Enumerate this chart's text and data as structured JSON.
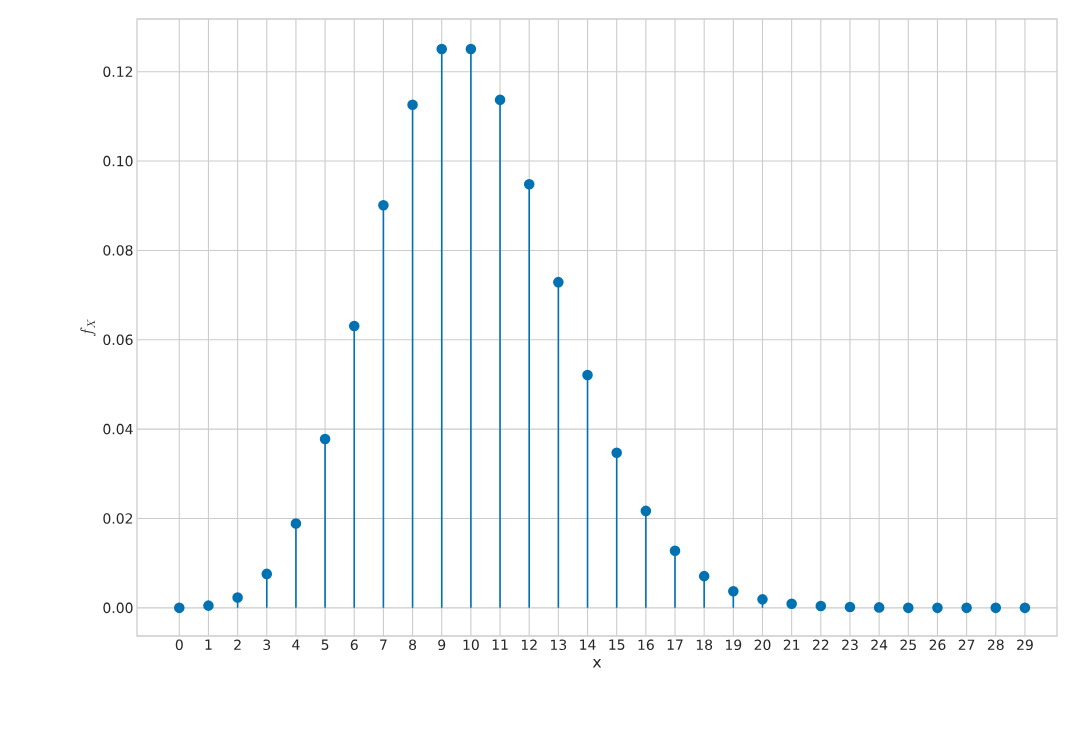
{
  "chart_data": {
    "type": "lollipop",
    "xlabel": "x",
    "ylabel": "f_X",
    "x": [
      0,
      1,
      2,
      3,
      4,
      5,
      6,
      7,
      8,
      9,
      10,
      11,
      12,
      13,
      14,
      15,
      16,
      17,
      18,
      19,
      20,
      21,
      22,
      23,
      24,
      25,
      26,
      27,
      28,
      29
    ],
    "values": [
      0.0,
      0.0005,
      0.0023,
      0.0076,
      0.0189,
      0.0378,
      0.0631,
      0.0901,
      0.1126,
      0.1251,
      0.1251,
      0.1137,
      0.0948,
      0.0729,
      0.0521,
      0.0347,
      0.0217,
      0.0128,
      0.0071,
      0.0037,
      0.0019,
      0.0009,
      0.0004,
      0.0002,
      0.0001,
      0.0,
      0.0,
      0.0,
      0.0,
      0.0
    ],
    "color": "#0072b2",
    "marker": "circle",
    "grid": true,
    "xlim": [
      -1.45,
      30.1
    ],
    "ylim": [
      -0.0063,
      0.1318
    ],
    "xticks": [
      0,
      1,
      2,
      3,
      4,
      5,
      6,
      7,
      8,
      9,
      10,
      11,
      12,
      13,
      14,
      15,
      16,
      17,
      18,
      19,
      20,
      21,
      22,
      23,
      24,
      25,
      26,
      27,
      28,
      29
    ],
    "yticks": [
      {
        "value": 0,
        "label": "0.00"
      },
      {
        "value": 0.02,
        "label": "0.02"
      },
      {
        "value": 0.04,
        "label": "0.04"
      },
      {
        "value": 0.06,
        "label": "0.06"
      },
      {
        "value": 0.08,
        "label": "0.08"
      },
      {
        "value": 0.1,
        "label": "0.10"
      },
      {
        "value": 0.12,
        "label": "0.12"
      }
    ]
  }
}
